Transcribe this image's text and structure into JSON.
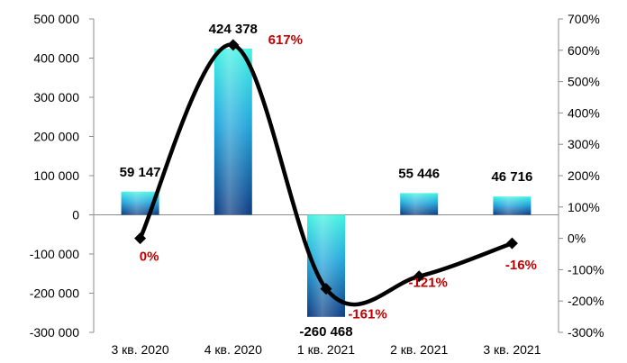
{
  "chart_data": {
    "type": "bar",
    "categories": [
      "3 кв. 2020",
      "4 кв. 2020",
      "1 кв. 2021",
      "2 кв. 2021",
      "3 кв. 2021"
    ],
    "series": [
      {
        "type": "bar",
        "axis": "left",
        "values": [
          59147,
          424378,
          -260468,
          55446,
          46716
        ],
        "labels": [
          "59 147",
          "424 378",
          "-260 468",
          "55 446",
          "46 716"
        ]
      },
      {
        "type": "line",
        "axis": "right",
        "smooth": true,
        "values": [
          0,
          617,
          -161,
          -121,
          -16
        ],
        "labels": [
          "0%",
          "617%",
          "-161%",
          "-121%",
          "-16%"
        ]
      }
    ],
    "y_left": {
      "min": -300000,
      "max": 500000,
      "step": 100000,
      "ticks": [
        "-300 000",
        "-200 000",
        "-100 000",
        "0",
        "100 000",
        "200 000",
        "300 000",
        "400 000",
        "500 000"
      ]
    },
    "y_right": {
      "min": -300,
      "max": 700,
      "step": 100,
      "ticks": [
        "-300%",
        "-200%",
        "-100%",
        "0%",
        "100%",
        "200%",
        "300%",
        "400%",
        "500%",
        "600%",
        "700%"
      ]
    },
    "grid": false,
    "legend": "none",
    "colors": {
      "bar_top": "#40f0e0",
      "bar_mid": "#1ea0d8",
      "bar_bottom": "#0d3f86",
      "line": "#000000",
      "pct_label": "#c00000"
    }
  }
}
